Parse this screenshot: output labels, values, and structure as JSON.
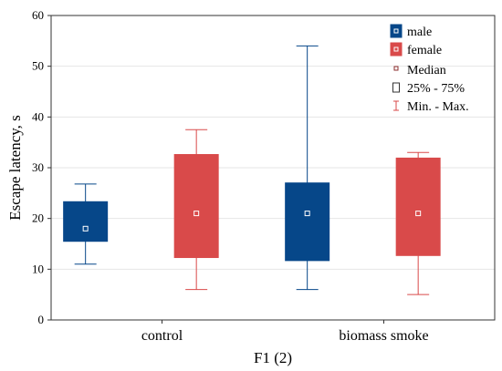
{
  "chart_data": {
    "type": "box",
    "ylabel": "Escape latency, s",
    "xlabel": "F1 (2)",
    "ylim": [
      0,
      60
    ],
    "yticks": [
      0,
      10,
      20,
      30,
      40,
      50,
      60
    ],
    "grid": true,
    "legend_position": "top-right",
    "categories": [
      "control",
      "biomass smoke"
    ],
    "series": [
      {
        "name": "male",
        "color": "#064789",
        "boxes": [
          {
            "min": 11,
            "q1": 15.5,
            "median": 18,
            "q3": 23.3,
            "max": 26.8
          },
          {
            "min": 6,
            "q1": 11.7,
            "median": 21,
            "q3": 27,
            "max": 54
          }
        ]
      },
      {
        "name": "female",
        "color": "#d94a4a",
        "boxes": [
          {
            "min": 6,
            "q1": 12.3,
            "median": 21,
            "q3": 32.6,
            "max": 37.5
          },
          {
            "min": 5,
            "q1": 12.7,
            "median": 21,
            "q3": 31.9,
            "max": 33
          }
        ]
      }
    ],
    "legend_extra": [
      {
        "label": "Median",
        "symbol": "small-square"
      },
      {
        "label": "25% - 75%",
        "symbol": "box-outline"
      },
      {
        "label": "Min. - Max.",
        "symbol": "whisker"
      }
    ]
  }
}
